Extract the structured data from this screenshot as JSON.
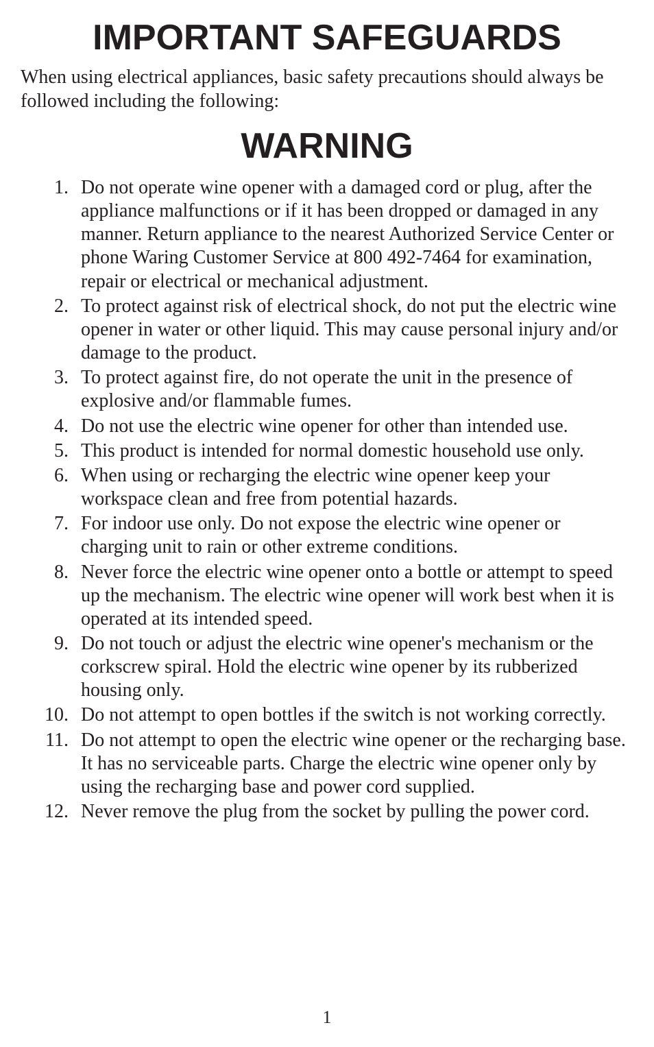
{
  "page": {
    "title_main": "IMPORTANT SAFEGUARDS",
    "intro": "When using electrical appliances, basic safety precautions should always be followed including the following:",
    "title_warning": "WARNING",
    "page_number": "1",
    "typography": {
      "heading_font": "Arial, Helvetica, sans-serif",
      "heading_weight": 900,
      "heading_size_pt": 39,
      "body_font": "Palatino Linotype, Palatino, Georgia, serif",
      "body_size_pt": 21,
      "text_color": "#231f20",
      "background_color": "#ffffff"
    },
    "items": [
      {
        "n": "1.",
        "text": "Do not operate wine opener with a damaged cord or plug, after the appliance malfunctions or if it has been dropped or damaged in any manner. Return appliance to the nearest Authorized Service Center or phone Waring Customer Service at 800 492-7464 for examination, repair or electrical or mechanical adjustment."
      },
      {
        "n": "2.",
        "text": "To protect against risk of electrical shock, do not put the electric wine opener in water or other liquid. This may cause personal injury and/or damage to the product."
      },
      {
        "n": "3.",
        "text": "To protect against fire, do not operate the unit in the presence of explosive and/or flammable fumes."
      },
      {
        "n": "4.",
        "text": "Do not use the electric wine opener for other than intended use."
      },
      {
        "n": "5.",
        "text": "This product is intended for normal domestic household use only."
      },
      {
        "n": "6.",
        "text": "When using or recharging the electric wine opener keep your workspace clean and free from potential hazards."
      },
      {
        "n": "7.",
        "text": "For indoor use only. Do not expose the electric wine opener or charging unit to rain or other extreme conditions."
      },
      {
        "n": "8.",
        "text": "Never force the electric wine opener onto a bottle or attempt to speed up the mechanism. The electric wine opener will work best when it is operated at its intended speed."
      },
      {
        "n": "9.",
        "text": "Do not touch or adjust the electric wine opener's mechanism or the corkscrew spiral. Hold the electric wine opener by its rubberized housing only."
      },
      {
        "n": "10.",
        "text": "Do not attempt to open bottles if the switch is not working correctly."
      },
      {
        "n": "11.",
        "text": "Do not attempt to open the electric wine opener or the recharging base. It has no serviceable parts. Charge the electric wine opener only by using the recharging base and power cord supplied."
      },
      {
        "n": "12.",
        "text": "Never remove the plug from the socket by pulling the power cord."
      }
    ]
  }
}
